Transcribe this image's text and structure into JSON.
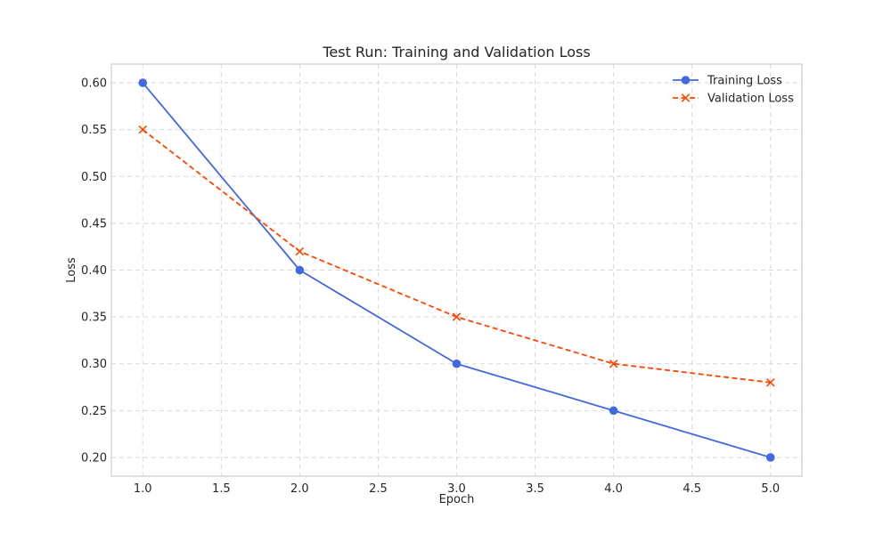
{
  "chart_data": {
    "type": "line",
    "title": "Test Run: Training and Validation Loss",
    "xlabel": "Epoch",
    "ylabel": "Loss",
    "xlim": [
      0.8,
      5.2
    ],
    "ylim": [
      0.18,
      0.62
    ],
    "x_ticks": [
      1.0,
      1.5,
      2.0,
      2.5,
      3.0,
      3.5,
      4.0,
      4.5,
      5.0
    ],
    "x_tick_labels": [
      "1.0",
      "1.5",
      "2.0",
      "2.5",
      "3.0",
      "3.5",
      "4.0",
      "4.5",
      "5.0"
    ],
    "y_ticks": [
      0.2,
      0.25,
      0.3,
      0.35,
      0.4,
      0.45,
      0.5,
      0.55,
      0.6
    ],
    "y_tick_labels": [
      "0.20",
      "0.25",
      "0.30",
      "0.35",
      "0.40",
      "0.45",
      "0.50",
      "0.55",
      "0.60"
    ],
    "grid": true,
    "legend_position": "top-right",
    "x": [
      1.0,
      2.0,
      3.0,
      4.0,
      5.0
    ],
    "series": [
      {
        "name": "Training Loss",
        "values": [
          0.6,
          0.4,
          0.3,
          0.25,
          0.2
        ],
        "color": "#4169e1",
        "line_style": "solid",
        "marker": "circle"
      },
      {
        "name": "Validation Loss",
        "values": [
          0.55,
          0.42,
          0.35,
          0.3,
          0.28
        ],
        "color": "#ff4500",
        "line_style": "dashed",
        "marker": "x"
      }
    ]
  }
}
